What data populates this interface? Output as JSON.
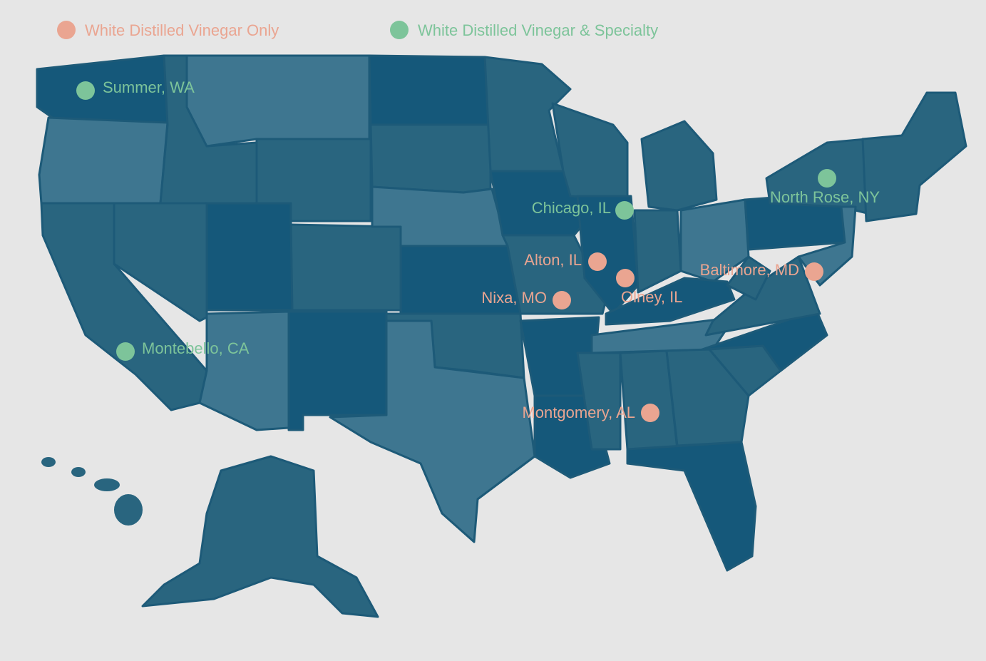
{
  "legend": [
    {
      "label": "White Distilled Vinegar Only",
      "color": "#eaa591",
      "locations": [
        "Alton, IL",
        "Olney, IL",
        "Nixa, MO",
        "Baltimore, MD",
        "Montgomery, AL"
      ]
    },
    {
      "label": "White Distilled Vinegar & Specialty",
      "color": "#7dc49a",
      "locations": [
        "Summer, WA",
        "Montebello, CA",
        "Chicago, IL",
        "North Rose, NY"
      ]
    }
  ]
}
